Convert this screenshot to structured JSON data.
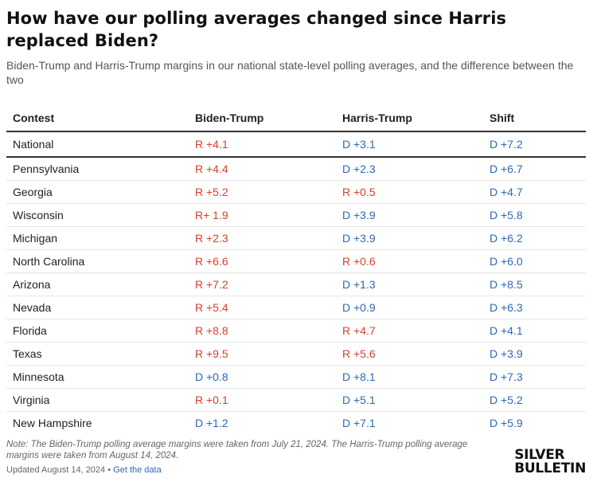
{
  "header": {
    "title": "How have our polling averages changed since Harris replaced Biden?",
    "subtitle": "Biden-Trump and Harris-Trump margins in our national state-level polling averages, and the difference between the two"
  },
  "table": {
    "columns": [
      "Contest",
      "Biden-Trump",
      "Harris-Trump",
      "Shift"
    ],
    "rows": [
      {
        "contest": "National",
        "biden_trump": "R +4.1",
        "harris_trump": "D +3.1",
        "shift": "D +7.2"
      },
      {
        "contest": "Pennsylvania",
        "biden_trump": "R +4.4",
        "harris_trump": "D +2.3",
        "shift": "D +6.7"
      },
      {
        "contest": "Georgia",
        "biden_trump": "R +5.2",
        "harris_trump": "R +0.5",
        "shift": "D +4.7"
      },
      {
        "contest": "Wisconsin",
        "biden_trump": "R+ 1.9",
        "harris_trump": "D +3.9",
        "shift": "D +5.8"
      },
      {
        "contest": "Michigan",
        "biden_trump": "R +2.3",
        "harris_trump": "D +3.9",
        "shift": "D +6.2"
      },
      {
        "contest": "North Carolina",
        "biden_trump": "R +6.6",
        "harris_trump": "R +0.6",
        "shift": "D +6.0"
      },
      {
        "contest": "Arizona",
        "biden_trump": "R +7.2",
        "harris_trump": "D +1.3",
        "shift": "D +8.5"
      },
      {
        "contest": "Nevada",
        "biden_trump": "R +5.4",
        "harris_trump": "D +0.9",
        "shift": "D +6.3"
      },
      {
        "contest": "Florida",
        "biden_trump": "R +8.8",
        "harris_trump": "R +4.7",
        "shift": "D +4.1"
      },
      {
        "contest": "Texas",
        "biden_trump": "R +9.5",
        "harris_trump": "R +5.6",
        "shift": "D +3.9"
      },
      {
        "contest": "Minnesota",
        "biden_trump": "D +0.8",
        "harris_trump": "D +8.1",
        "shift": "D +7.3"
      },
      {
        "contest": "Virginia",
        "biden_trump": "R +0.1",
        "harris_trump": "D +5.1",
        "shift": "D +5.2"
      },
      {
        "contest": "New Hampshire",
        "biden_trump": "D +1.2",
        "harris_trump": "D +7.1",
        "shift": "D +5.9"
      }
    ]
  },
  "footer": {
    "note": "Note: The Biden-Trump polling average margins were taken from July 21, 2024. The Harris-Trump polling average margins were taken from August 14, 2024.",
    "updated": "Updated August 14, 2024",
    "separator": "•",
    "get_data_label": "Get the data"
  },
  "logo": {
    "line1": "SILVER",
    "line2": "BULLETIN"
  },
  "colors": {
    "republican": "#d6402e",
    "democrat": "#2e69b0"
  }
}
